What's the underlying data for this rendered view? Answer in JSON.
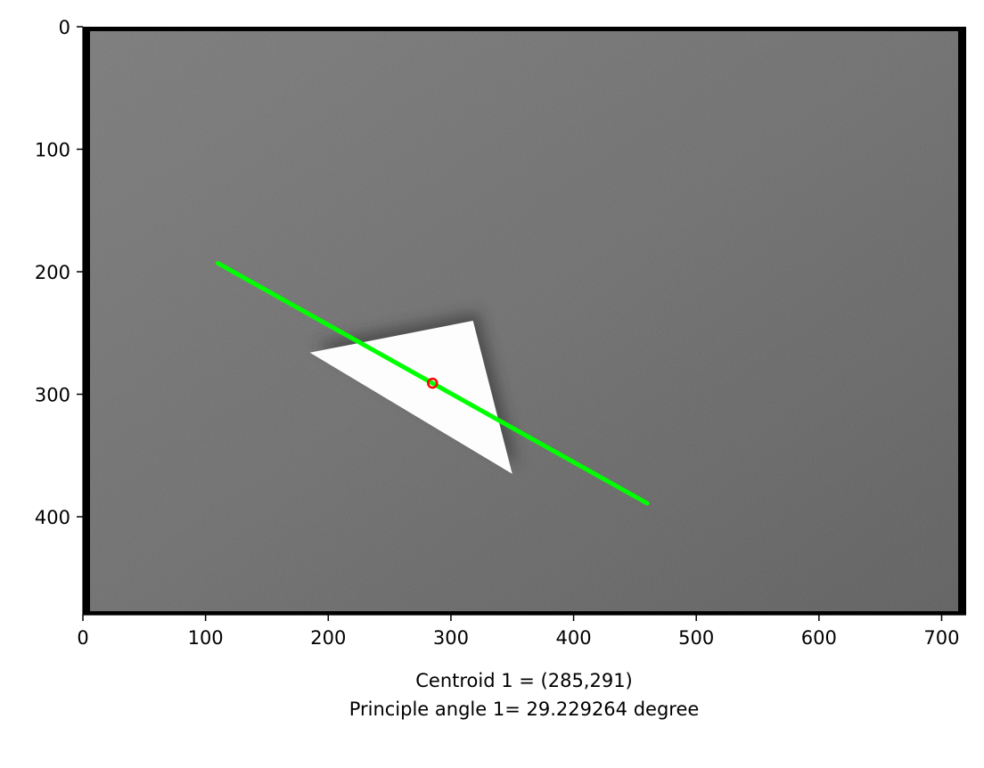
{
  "plot": {
    "image_extent": {
      "x": [
        0,
        720
      ],
      "y": [
        480,
        0
      ]
    },
    "x_ticks": [
      "0",
      "100",
      "200",
      "300",
      "400",
      "500",
      "600",
      "700"
    ],
    "y_ticks": [
      "0",
      "100",
      "200",
      "300",
      "400"
    ],
    "triangle_vertices": [
      [
        185,
        266
      ],
      [
        318,
        240
      ],
      [
        350,
        365
      ]
    ],
    "principal_axis": {
      "start": [
        110,
        193
      ],
      "end": [
        460,
        389
      ],
      "color": "#00ff00"
    },
    "centroid_marker": {
      "x": 285,
      "y": 291,
      "color": "#ff0000"
    },
    "caption_lines": [
      "Centroid 1 = (285,291)",
      "Principle angle 1= 29.229264 degree"
    ]
  }
}
